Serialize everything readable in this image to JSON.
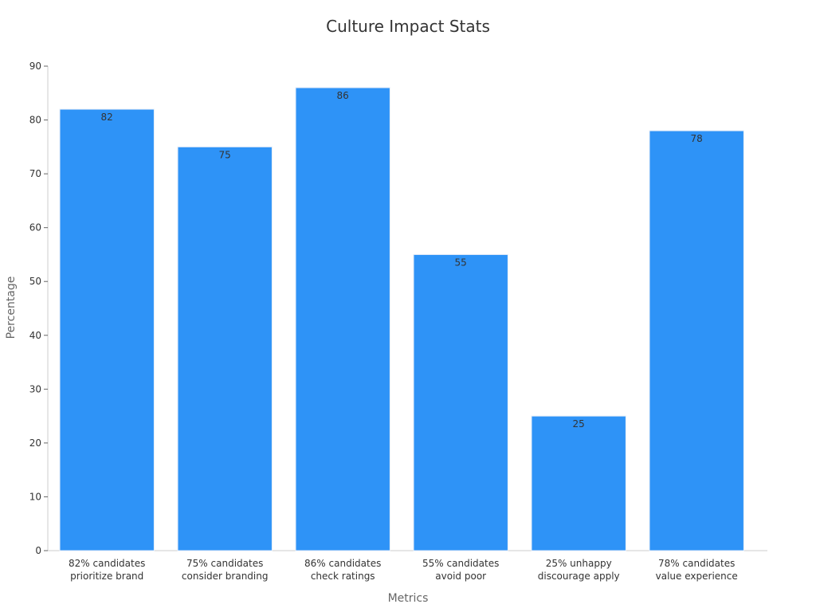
{
  "chart_data": {
    "type": "bar",
    "title": "Culture Impact Stats",
    "xlabel": "Metrics",
    "ylabel": "Percentage",
    "ylim": [
      0,
      90
    ],
    "yticks": [
      0,
      10,
      20,
      30,
      40,
      50,
      60,
      70,
      80,
      90
    ],
    "categories": [
      [
        "82% candidates",
        "prioritize brand"
      ],
      [
        "75% candidates",
        "consider branding"
      ],
      [
        "86% candidates",
        "check ratings"
      ],
      [
        "55% candidates",
        "avoid poor"
      ],
      [
        "25% unhappy",
        "discourage apply"
      ],
      [
        "78% candidates",
        "value experience"
      ]
    ],
    "values": [
      82,
      75,
      86,
      55,
      25,
      78
    ],
    "grid": false,
    "legend": "none",
    "colors": {
      "bar": "#2e93f7",
      "bar_edge": "#e6eef8",
      "axis": "#cccccc",
      "text": "#333333",
      "axis_title": "#666666"
    }
  }
}
